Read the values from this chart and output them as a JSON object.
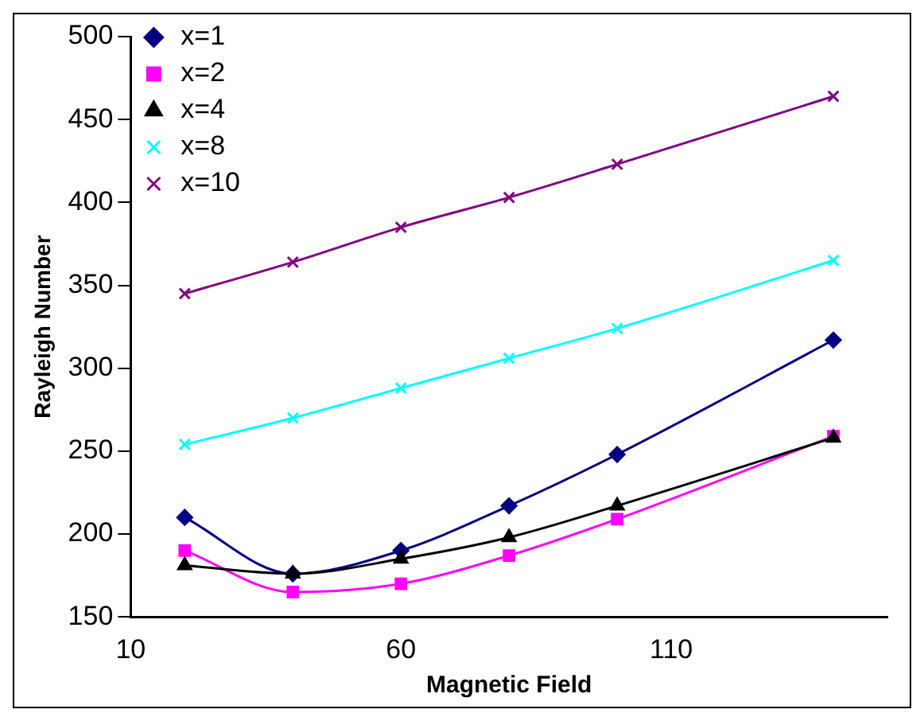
{
  "chart_data": {
    "type": "line",
    "xlabel": "Magnetic Field",
    "ylabel": "Rayleigh Number",
    "x": [
      20,
      40,
      60,
      80,
      100,
      140
    ],
    "xlim": [
      10,
      150
    ],
    "xticks": [
      10,
      60,
      110
    ],
    "ylim": [
      150,
      500
    ],
    "yticks": [
      150,
      200,
      250,
      300,
      350,
      400,
      450,
      500
    ],
    "grid": false,
    "legend": "top left",
    "line_style": "solid",
    "series": [
      {
        "name": "x=1",
        "color": "#000080",
        "marker": "diamond",
        "values": [
          210,
          176,
          190,
          217,
          248,
          317
        ]
      },
      {
        "name": "x=2",
        "color": "#ff00ff",
        "marker": "square",
        "values": [
          190,
          165,
          170,
          187,
          209,
          259
        ]
      },
      {
        "name": "x=4",
        "color": "#000000",
        "marker": "triangle",
        "values": [
          181,
          176,
          185,
          198,
          217,
          258
        ]
      },
      {
        "name": "x=8",
        "color": "#00ffff",
        "marker": "cross",
        "values": [
          254,
          270,
          288,
          306,
          324,
          365
        ]
      },
      {
        "name": "x=10",
        "color": "#800080",
        "marker": "cross",
        "values": [
          345,
          364,
          385,
          403,
          423,
          464
        ]
      }
    ]
  }
}
